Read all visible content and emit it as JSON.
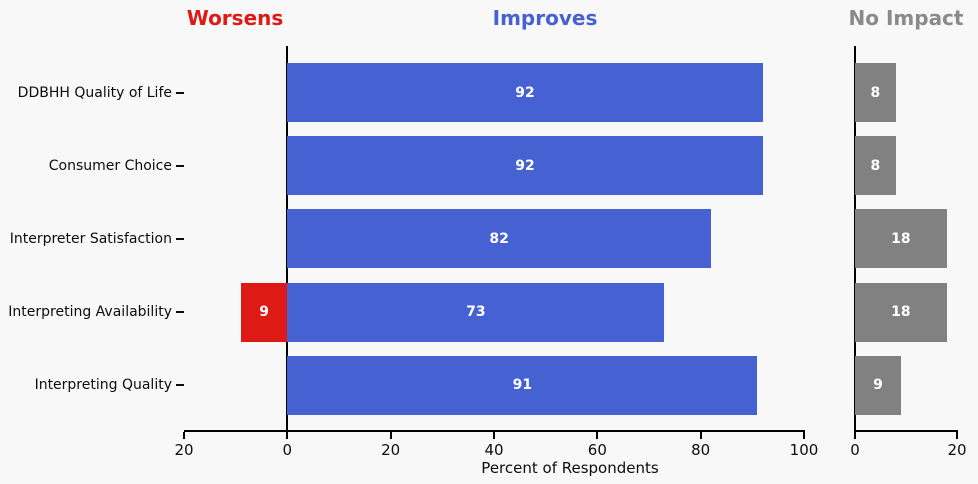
{
  "titles": {
    "worsens": "Worsens",
    "improves": "Improves",
    "no_impact": "No Impact"
  },
  "colors": {
    "background": "#f8f8f8",
    "worsens": "#dd1a15",
    "improves": "#4561d2",
    "no_impact_bar": "#818181",
    "no_impact_title": "#8a8a8a",
    "axis": "#000000",
    "bar_value_text": "#ffffff"
  },
  "chart_data": {
    "type": "bar",
    "orientation": "horizontal-diverging",
    "xlabel": "Percent of Respondents",
    "categories": [
      "DDBHH Quality of Life",
      "Consumer Choice",
      "Interpreter Satisfaction",
      "Interpreting Availability",
      "Interpreting Quality"
    ],
    "series": [
      {
        "name": "Worsens",
        "color_key": "worsens",
        "panel": "main-left",
        "values": [
          null,
          null,
          null,
          9,
          null
        ]
      },
      {
        "name": "Improves",
        "color_key": "improves",
        "panel": "main-right",
        "values": [
          92,
          92,
          82,
          73,
          91
        ]
      },
      {
        "name": "No Impact",
        "color_key": "no_impact_bar",
        "panel": "no-impact",
        "values": [
          8,
          8,
          18,
          18,
          9
        ]
      }
    ],
    "main_axis": {
      "range": [
        -20,
        100
      ],
      "ticks": [
        -20,
        0,
        20,
        40,
        60,
        80,
        100
      ],
      "tick_labels": [
        "20",
        "0",
        "20",
        "40",
        "60",
        "80",
        "100"
      ]
    },
    "no_impact_axis": {
      "range": [
        0,
        20
      ],
      "ticks": [
        0,
        20
      ],
      "tick_labels": [
        "0",
        "20"
      ]
    },
    "grid": false,
    "legend_position": "panel titles above chart"
  }
}
